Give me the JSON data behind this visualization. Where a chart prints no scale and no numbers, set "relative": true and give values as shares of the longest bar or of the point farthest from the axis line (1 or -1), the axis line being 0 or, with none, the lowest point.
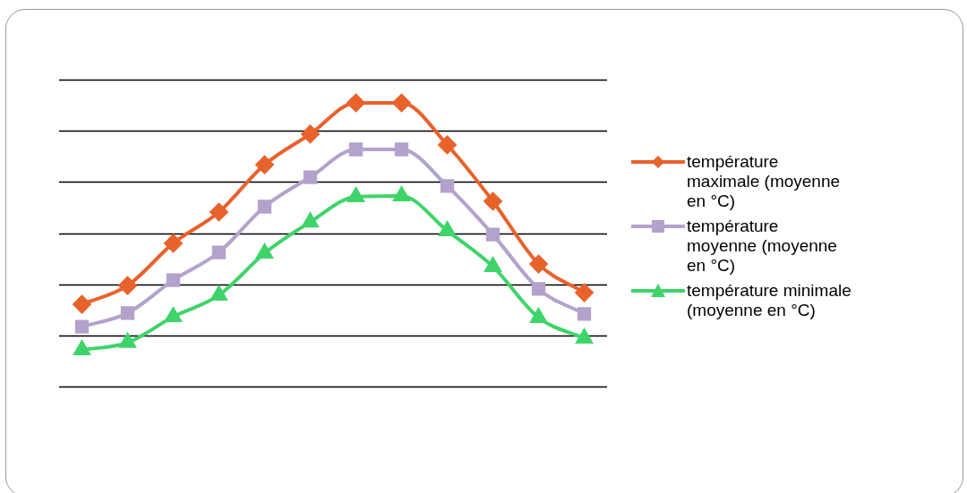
{
  "chart_data": {
    "type": "line",
    "relative": true,
    "grid": "y",
    "legend": "right",
    "categories": [
      null,
      null,
      null,
      null,
      null,
      null,
      null,
      null,
      null,
      null,
      null,
      null
    ],
    "series": [
      {
        "name": "température maximale (moyenne en °C)",
        "color": "#e8622c",
        "marker": "diamond",
        "values": [
          0.29,
          0.356,
          0.505,
          0.615,
          0.782,
          0.89,
          1,
          1,
          0.852,
          0.653,
          0.432,
          0.331
        ]
      },
      {
        "name": "température moyenne (moyenne en °C)",
        "color": "#b3a2cc",
        "marker": "square",
        "values": [
          0.211,
          0.259,
          0.375,
          0.473,
          0.634,
          0.738,
          0.836,
          0.836,
          0.707,
          0.536,
          0.344,
          0.256
        ]
      },
      {
        "name": "température minimale (moyenne en °C)",
        "color": "#3fd46a",
        "marker": "triangle",
        "values": [
          0.129,
          0.155,
          0.246,
          0.322,
          0.47,
          0.58,
          0.669,
          0.672,
          0.549,
          0.423,
          0.243,
          0.17
        ]
      }
    ]
  }
}
